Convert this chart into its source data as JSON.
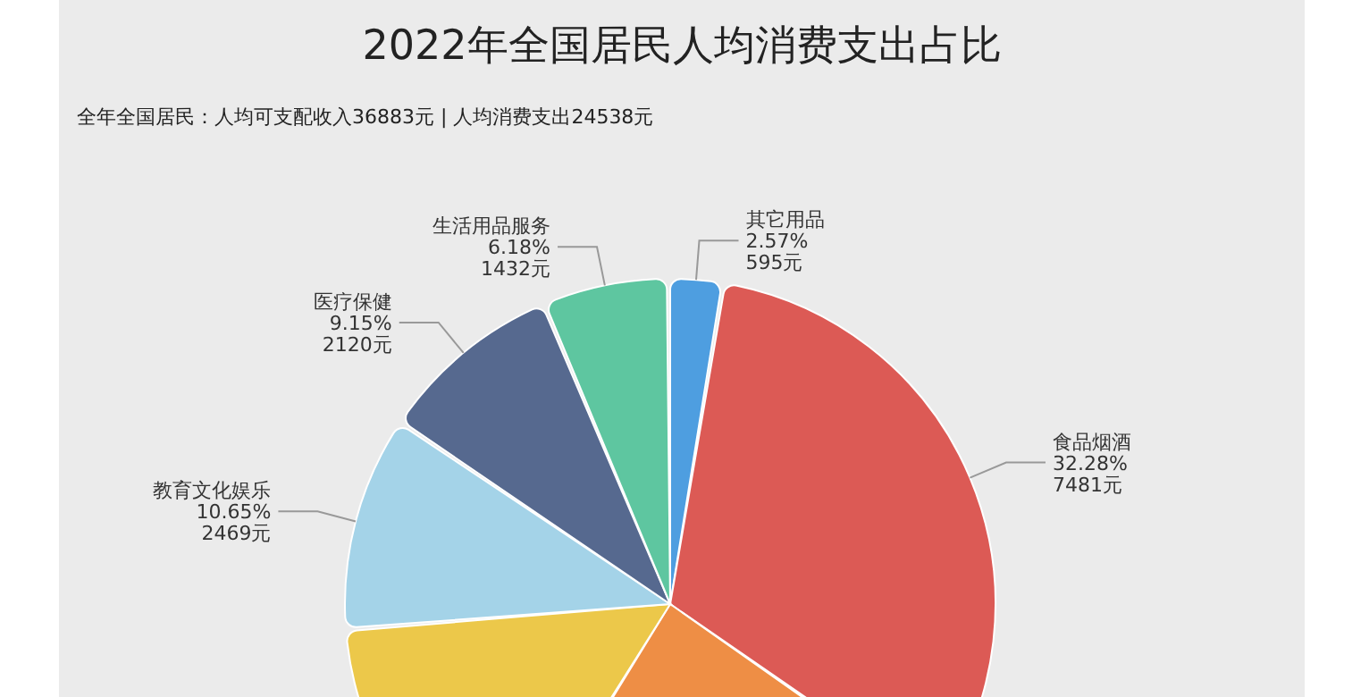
{
  "chart_data": {
    "type": "pie",
    "title": "2022年全国居民人均消费支出占比",
    "subtitle": "全年全国居民：人均可支配收入36883元 | 人均消费支出24538元",
    "categories": [
      "其它用品",
      "食品烟酒",
      null,
      null,
      "教育文化娱乐",
      "医疗保健",
      "生活用品服务"
    ],
    "values": [
      2.57,
      32.28,
      24.3,
      14.9,
      10.65,
      9.15,
      6.18
    ],
    "value_labels": [
      "2.57%\n595元",
      "32.28%\n7481元",
      null,
      null,
      "10.65%\n2469元",
      "9.15%\n2120元",
      "6.18%\n1432元"
    ],
    "colors": [
      "#4e9ee0",
      "#dc5a55",
      "#ee8e45",
      "#ecc84a",
      "#a4d3e8",
      "#56698f",
      "#5ec6a0"
    ]
  }
}
